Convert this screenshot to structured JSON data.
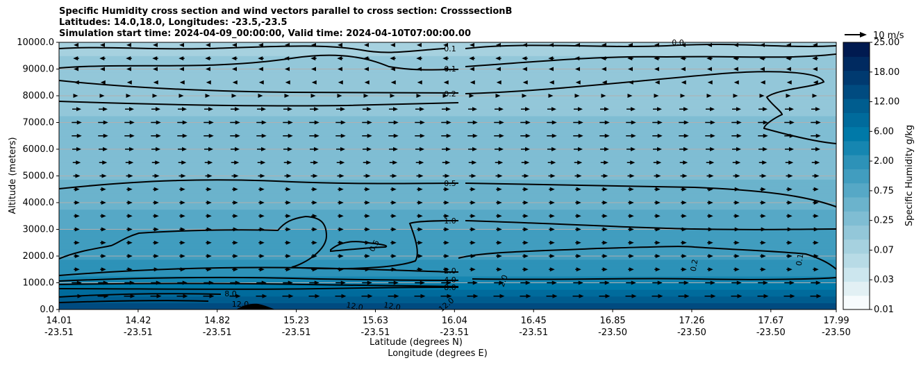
{
  "chart_data": {
    "type": "contour",
    "title_lines": [
      "Specific Humidity cross section and wind vectors parallel to cross section: CrosssectionB",
      "Latitudes: 14.0,18.0, Longitudes: -23.5,-23.5",
      "Simulation start time: 2024-04-09_00:00:00, Valid time: 2024-04-10T07:00:00.00"
    ],
    "ylabel": "Altitude (meters)",
    "xlabel_lat": "Latitude (degrees N)",
    "xlabel_lon": "Longitude (degrees E)",
    "ylim": [
      0,
      10000
    ],
    "y_ticks": [
      "0.0",
      "1000.0",
      "2000.0",
      "3000.0",
      "4000.0",
      "5000.0",
      "6000.0",
      "7000.0",
      "8000.0",
      "9000.0",
      "10000.0"
    ],
    "x_ticks": [
      {
        "lat": "14.01",
        "lon": "-23.51"
      },
      {
        "lat": "14.42",
        "lon": "-23.51"
      },
      {
        "lat": "14.82",
        "lon": "-23.51"
      },
      {
        "lat": "15.23",
        "lon": "-23.51"
      },
      {
        "lat": "15.63",
        "lon": "-23.51"
      },
      {
        "lat": "16.04",
        "lon": "-23.51"
      },
      {
        "lat": "16.45",
        "lon": "-23.51"
      },
      {
        "lat": "16.85",
        "lon": "-23.50"
      },
      {
        "lat": "17.26",
        "lon": "-23.50"
      },
      {
        "lat": "17.67",
        "lon": "-23.50"
      },
      {
        "lat": "17.99",
        "lon": "-23.50"
      }
    ],
    "colorbar": {
      "label": "Specific Humidity g/kg",
      "tick_labels": [
        "0.01",
        "0.03",
        "0.07",
        "0.25",
        "0.75",
        "2.00",
        "6.00",
        "12.00",
        "18.00",
        "25.00"
      ],
      "levels": [
        0.01,
        0.02,
        0.03,
        0.05,
        0.07,
        0.1,
        0.25,
        0.5,
        0.75,
        1.0,
        2.0,
        4.0,
        6.0,
        8.0,
        12.0,
        14.0,
        18.0,
        20.0,
        25.0
      ]
    },
    "quiver_key": "10 m/s",
    "contour_labels": [
      "0.1",
      "0.1",
      "0.2",
      "0.5",
      "1.0",
      "0.5",
      "2.0",
      "4.0",
      "8.0",
      "8.0",
      "12.0",
      "12.0",
      "12.0",
      "12.0",
      "2.0",
      "0.2",
      "0.1",
      "0.0"
    ],
    "humidity_profile": [
      {
        "alt": 0,
        "q": 16.0
      },
      {
        "alt": 500,
        "q": 12.0
      },
      {
        "alt": 1000,
        "q": 6.0
      },
      {
        "alt": 1500,
        "q": 2.5
      },
      {
        "alt": 2000,
        "q": 1.8
      },
      {
        "alt": 3000,
        "q": 1.0
      },
      {
        "alt": 4500,
        "q": 0.55
      },
      {
        "alt": 6000,
        "q": 0.35
      },
      {
        "alt": 8000,
        "q": 0.2
      },
      {
        "alt": 9000,
        "q": 0.12
      },
      {
        "alt": 10000,
        "q": 0.08
      }
    ],
    "wind_rows": [
      {
        "alt": 9900,
        "dir": -1,
        "speed": 4
      },
      {
        "alt": 9400,
        "dir": -1,
        "speed": 5
      },
      {
        "alt": 9000,
        "dir": -1,
        "speed": 4
      },
      {
        "alt": 8500,
        "dir": -1,
        "speed": 3
      },
      {
        "alt": 8000,
        "dir": 1,
        "speed": 2
      },
      {
        "alt": 7500,
        "dir": 1,
        "speed": 8
      },
      {
        "alt": 7000,
        "dir": 1,
        "speed": 9
      },
      {
        "alt": 6500,
        "dir": 1,
        "speed": 9
      },
      {
        "alt": 6000,
        "dir": 1,
        "speed": 8
      },
      {
        "alt": 5500,
        "dir": 1,
        "speed": 7
      },
      {
        "alt": 5000,
        "dir": 1,
        "speed": 6
      },
      {
        "alt": 4500,
        "dir": 1,
        "speed": 5
      },
      {
        "alt": 4000,
        "dir": 1,
        "speed": 5
      },
      {
        "alt": 3500,
        "dir": 1,
        "speed": 5
      },
      {
        "alt": 3000,
        "dir": 1,
        "speed": 5
      },
      {
        "alt": 2500,
        "dir": 1,
        "speed": 5
      },
      {
        "alt": 2000,
        "dir": 1,
        "speed": 5
      },
      {
        "alt": 1500,
        "dir": 1,
        "speed": 5
      },
      {
        "alt": 1000,
        "dir": 1,
        "speed": 9
      },
      {
        "alt": 500,
        "dir": 1,
        "speed": 10
      }
    ]
  }
}
